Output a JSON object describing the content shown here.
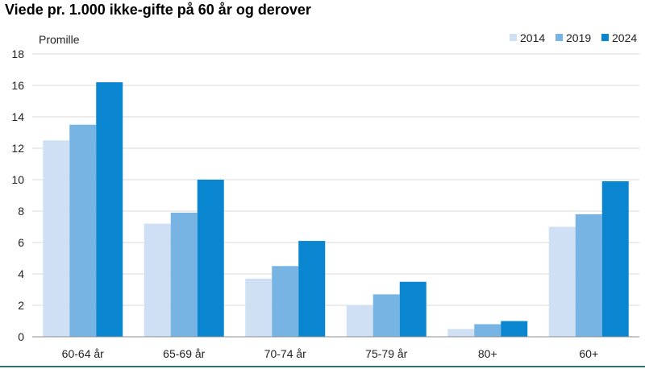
{
  "chart_data": {
    "type": "bar",
    "title": "Viede pr. 1.000 ikke-gifte på 60 år og derover",
    "ylabel": "Promille",
    "xlabel": "",
    "categories": [
      "60-64 år",
      "65-69 år",
      "70-74 år",
      "75-79 år",
      "80+",
      "60+"
    ],
    "series": [
      {
        "name": "2014",
        "color": "#cfe0f5",
        "values": [
          12.5,
          7.2,
          3.7,
          2.0,
          0.5,
          7.0
        ]
      },
      {
        "name": "2019",
        "color": "#77b4e3",
        "values": [
          13.5,
          7.9,
          4.5,
          2.7,
          0.8,
          7.8
        ]
      },
      {
        "name": "2024",
        "color": "#0a86d1",
        "values": [
          16.2,
          10.0,
          6.1,
          3.5,
          1.0,
          9.9
        ]
      }
    ],
    "ylim": [
      0,
      18
    ],
    "yticks": [
      0,
      2,
      4,
      6,
      8,
      10,
      12,
      14,
      16,
      18
    ],
    "grid": true,
    "legend_position": "top-right"
  }
}
